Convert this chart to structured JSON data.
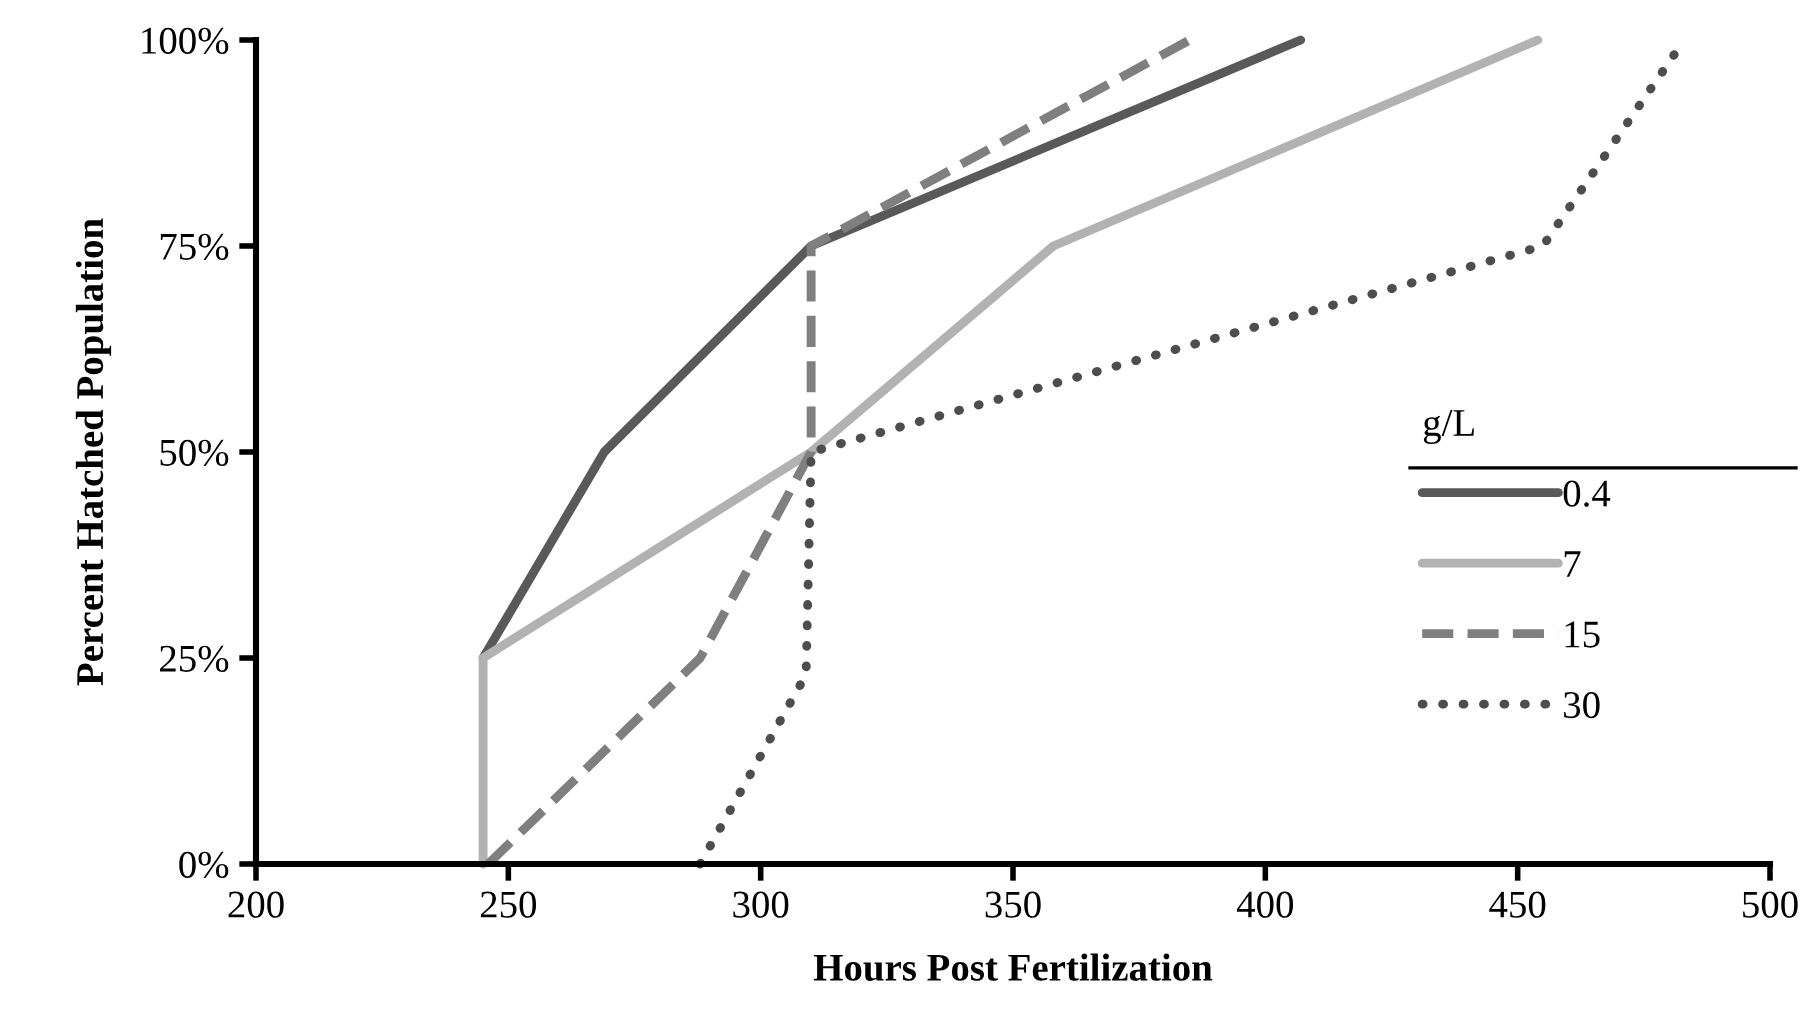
{
  "chart_data": {
    "type": "line",
    "xlabel": "Hours Post Fertilization",
    "ylabel": "Percent Hatched Population",
    "legend_title": "g/L",
    "legend": "right",
    "grid": false,
    "marker": "none",
    "xlim": [
      200,
      500
    ],
    "xticks": [
      200,
      250,
      300,
      350,
      400,
      450,
      500
    ],
    "ylim": [
      0,
      100
    ],
    "yticks": [
      {
        "value": 0,
        "label": "0%"
      },
      {
        "value": 25,
        "label": "25%"
      },
      {
        "value": 50,
        "label": "50%"
      },
      {
        "value": 75,
        "label": "75%"
      },
      {
        "value": 100,
        "label": "100%"
      }
    ],
    "series": [
      {
        "name": "0.4",
        "color": "#595959",
        "line_style": "solid",
        "x": [
          245,
          269,
          310,
          407
        ],
        "values": [
          25,
          50,
          75,
          100
        ]
      },
      {
        "name": "7",
        "color": "#b2b2b2",
        "line_style": "solid",
        "x": [
          245,
          245,
          310,
          358,
          454
        ],
        "values": [
          0,
          25,
          50,
          75,
          100
        ]
      },
      {
        "name": "15",
        "color": "#7f7f7f",
        "line_style": "dashed",
        "x": [
          246,
          288,
          310,
          310,
          385
        ],
        "values": [
          0,
          25,
          50,
          75,
          100
        ]
      },
      {
        "name": "30",
        "color": "#4d4d4d",
        "line_style": "dotted",
        "x": [
          288,
          309,
          310,
          455,
          483
        ],
        "values": [
          0,
          23,
          50,
          75,
          100
        ]
      }
    ]
  }
}
